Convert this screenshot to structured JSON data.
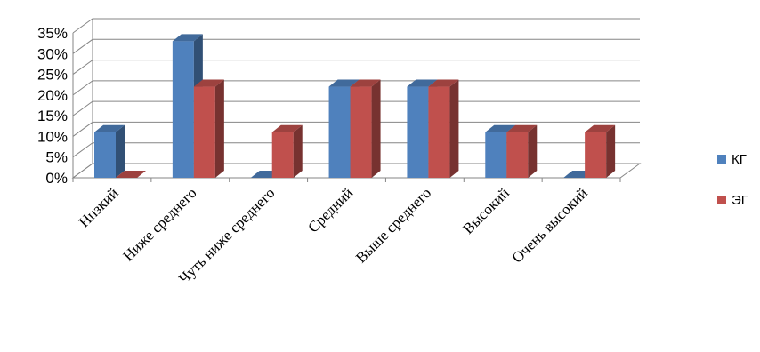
{
  "chart_data": {
    "type": "bar",
    "style": "3d-clustered-column",
    "categories": [
      "Низкий",
      "Ниже среднего",
      "Чуть ниже среднего",
      "Средний",
      "Выше среднего",
      "Высокий",
      "Очень высокий"
    ],
    "series": [
      {
        "name": "КГ",
        "values": [
          11,
          33,
          0,
          22,
          22,
          11,
          0
        ],
        "color": "#4F81BD"
      },
      {
        "name": "ЭГ",
        "values": [
          0,
          22,
          11,
          22,
          22,
          11,
          11
        ],
        "color": "#C0504D"
      }
    ],
    "ylim": [
      0,
      35
    ],
    "yticks": [
      "0%",
      "5%",
      "10%",
      "15%",
      "20%",
      "25%",
      "30%",
      "35%"
    ],
    "grid": true,
    "legend": "right"
  }
}
